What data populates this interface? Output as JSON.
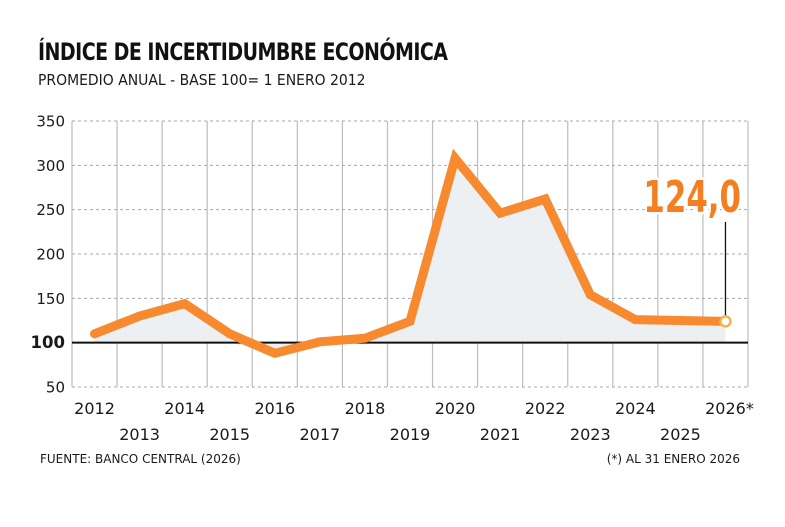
{
  "header": {
    "title": "ÍNDICE DE INCERTIDUMBRE ECONÓMICA",
    "subtitle": "PROMEDIO ANUAL - BASE 100= 1 ENERO 2012"
  },
  "footer": {
    "source": "FUENTE: BANCO CENTRAL (2026)",
    "note": "(*) AL 31 ENERO 2026"
  },
  "colors": {
    "line": "#F7892F",
    "area": "#EDF0F2",
    "grid": "#AAAAAA",
    "baseline": "#111111",
    "marker_stroke": "#F5B546",
    "callout": "#F47F20"
  },
  "chart_data": {
    "type": "line",
    "title": "ÍNDICE DE INCERTIDUMBRE ECONÓMICA",
    "subtitle": "PROMEDIO ANUAL - BASE 100= 1 ENERO 2012",
    "xlabel": "",
    "ylabel": "",
    "categories": [
      "2012",
      "2013",
      "2014",
      "2015",
      "2016",
      "2017",
      "2018",
      "2019",
      "2020",
      "2021",
      "2022",
      "2023",
      "2024",
      "2025",
      "2026*"
    ],
    "series": [
      {
        "name": "Índice de incertidumbre económica",
        "values": [
          110,
          130,
          144,
          110,
          88,
          101,
          105,
          124,
          308,
          246,
          262,
          154,
          126,
          125,
          124.0
        ]
      }
    ],
    "ylim": [
      50,
      350
    ],
    "yticks": [
      50,
      100,
      150,
      200,
      250,
      300,
      350
    ],
    "ytick_labels": [
      "50",
      "100",
      "150",
      "200",
      "250",
      "300",
      "350"
    ],
    "baseline": 100,
    "grid": true,
    "area_fill": true,
    "annotation": {
      "category": "2026*",
      "value": 124.0,
      "label": "124,0"
    },
    "legend": "none"
  }
}
